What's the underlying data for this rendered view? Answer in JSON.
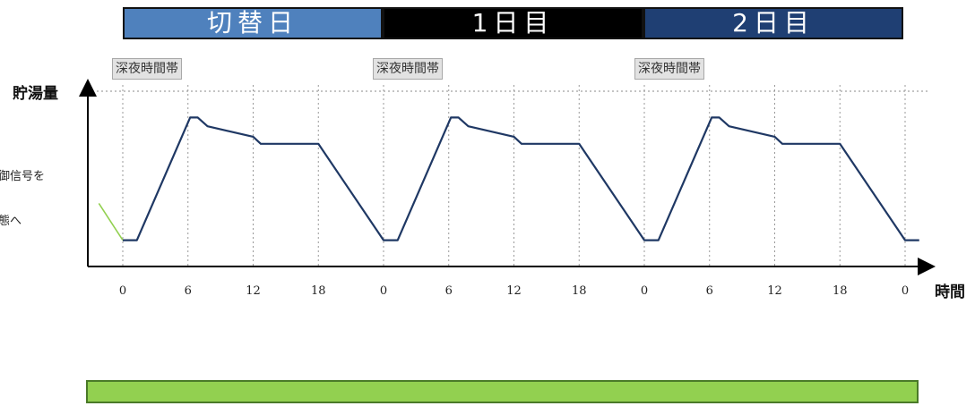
{
  "header": {
    "days": [
      {
        "label": "切替日",
        "color": "#4f81bd"
      },
      {
        "label": "1日目",
        "color": "#000000"
      },
      {
        "label": "2日目",
        "color": "#1f3f73"
      }
    ]
  },
  "night_band_labels": [
    "深夜時間帯",
    "深夜時間帯",
    "深夜時間帯"
  ],
  "left_notes": [
    "御信号を",
    "態へ"
  ],
  "bottom_bar": {
    "color": "#92d050"
  },
  "chart_data": {
    "type": "line",
    "title": "",
    "xlabel": "時間",
    "ylabel": "貯湯量",
    "x_tick_labels": [
      "0",
      "6",
      "12",
      "18",
      "0",
      "6",
      "12",
      "18",
      "0",
      "6",
      "12",
      "18",
      "0"
    ],
    "x_tick_hours": [
      0,
      6,
      12,
      18,
      24,
      30,
      36,
      42,
      48,
      54,
      60,
      66,
      72
    ],
    "ylim": [
      0,
      100
    ],
    "grid": "vertical dotted lines at each tick; dotted line at maximum level",
    "series": [
      {
        "color": "#92d050",
        "points": [
          [
            -2.2,
            36
          ],
          [
            0,
            15
          ]
        ]
      },
      {
        "color": "#1f3864",
        "points": [
          [
            0,
            15
          ],
          [
            1.3,
            15
          ],
          [
            6.2,
            85
          ],
          [
            6.9,
            85
          ],
          [
            7.8,
            80
          ],
          [
            12,
            74
          ],
          [
            12.7,
            70
          ],
          [
            18,
            70
          ],
          [
            24,
            15
          ],
          [
            25.3,
            15
          ],
          [
            30.2,
            85
          ],
          [
            30.9,
            85
          ],
          [
            31.8,
            80
          ],
          [
            36,
            74
          ],
          [
            36.7,
            70
          ],
          [
            42,
            70
          ],
          [
            48,
            15
          ],
          [
            49.3,
            15
          ],
          [
            54.2,
            85
          ],
          [
            54.9,
            85
          ],
          [
            55.8,
            80
          ],
          [
            60,
            74
          ],
          [
            60.7,
            70
          ],
          [
            66,
            70
          ],
          [
            72,
            15
          ],
          [
            73.3,
            15
          ]
        ]
      }
    ]
  }
}
